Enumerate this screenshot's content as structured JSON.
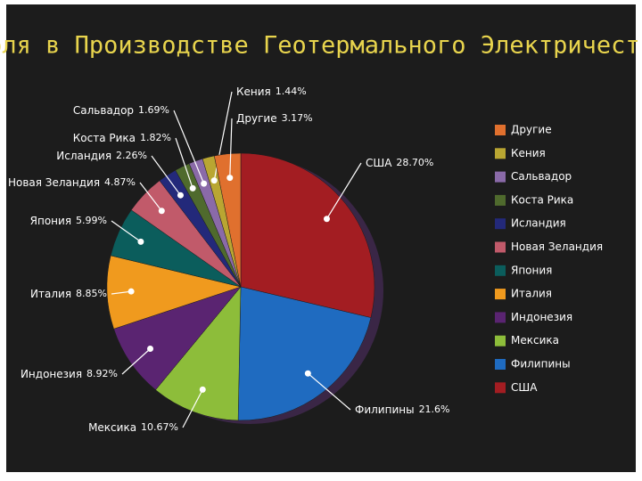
{
  "chart_data": {
    "type": "pie",
    "title": "Доля в Производстве Геотермального Электричества",
    "categories": [
      "США",
      "Филипины",
      "Мексика",
      "Индонезия",
      "Италия",
      "Япония",
      "Новая Зеландия",
      "Исландия",
      "Коста Рика",
      "Сальвадор",
      "Кения",
      "Другие"
    ],
    "values": [
      28.7,
      21.6,
      10.67,
      8.92,
      8.85,
      5.99,
      4.87,
      2.26,
      1.82,
      1.69,
      1.44,
      3.17
    ],
    "value_labels": [
      "28.70%",
      "21.6%",
      "10.67%",
      "8.92%",
      "8.85%",
      "5.99%",
      "4.87%",
      "2.26%",
      "1.82%",
      "1.69%",
      "1.44%",
      "3.17%"
    ],
    "colors": [
      "#a31d22",
      "#1f6bc0",
      "#8dbd3a",
      "#5a2471",
      "#f09a1e",
      "#0b5d5c",
      "#c15a6a",
      "#23297a",
      "#4f6a2d",
      "#8a6aa8",
      "#b9a632",
      "#e0702e"
    ],
    "legend_position": "right"
  }
}
